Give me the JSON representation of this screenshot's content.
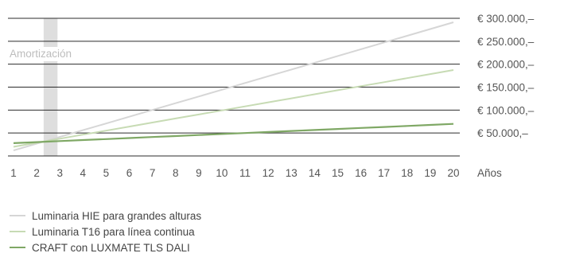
{
  "chart_data": {
    "type": "line",
    "title": "",
    "xlabel": "Años",
    "ylabel": "",
    "x": [
      1,
      2,
      3,
      4,
      5,
      6,
      7,
      8,
      9,
      10,
      11,
      12,
      13,
      14,
      15,
      16,
      17,
      18,
      19,
      20
    ],
    "xlim": [
      1,
      20
    ],
    "ylim": [
      0,
      300000
    ],
    "y_ticks": [
      {
        "value": 300000,
        "label": "€ 300.000,–"
      },
      {
        "value": 250000,
        "label": "€ 250.000,–"
      },
      {
        "value": 200000,
        "label": "€ 200.000,–"
      },
      {
        "value": 150000,
        "label": "€ 150.000,–"
      },
      {
        "value": 100000,
        "label": "€ 100.000,–"
      },
      {
        "value": 50000,
        "label": "€  50.000,–"
      }
    ],
    "grid": "horizontal",
    "legend_position": "bottom-left",
    "annotation": {
      "text": "Amortización",
      "x_start": 2.3,
      "x_end": 2.9
    },
    "series": [
      {
        "name": "Luminaria HIE para grandes alturas",
        "color": "#d6d6d6",
        "values": [
          12000,
          26700,
          41400,
          56100,
          70800,
          85500,
          100200,
          114900,
          129600,
          144300,
          159000,
          173700,
          188400,
          203100,
          217800,
          232500,
          247200,
          261900,
          276600,
          291300
        ]
      },
      {
        "name": "Luminaria T16 para línea continua",
        "color": "#c7dbb4",
        "values": [
          20000,
          28800,
          37600,
          46400,
          55200,
          64000,
          72800,
          81600,
          90400,
          99200,
          108000,
          116800,
          125600,
          134400,
          143200,
          152000,
          160800,
          169600,
          178400,
          187200
        ]
      },
      {
        "name": "CRAFT con LUXMATE TLS DALI",
        "color": "#7fa865",
        "values": [
          28000,
          30200,
          32400,
          34600,
          36800,
          39000,
          41200,
          43400,
          45600,
          47800,
          50000,
          52200,
          54400,
          56600,
          58800,
          61000,
          63200,
          65400,
          67600,
          69800
        ]
      }
    ]
  }
}
